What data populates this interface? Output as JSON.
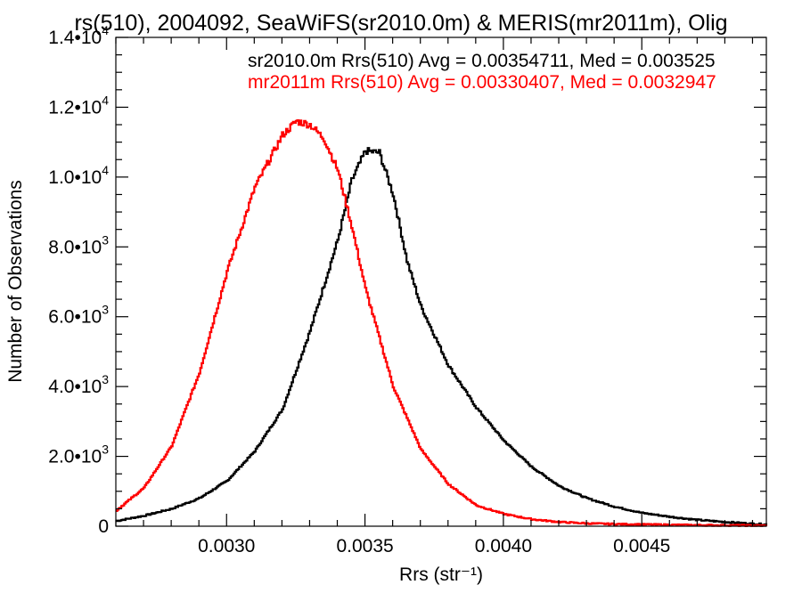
{
  "chart_data": {
    "type": "line",
    "title": "rs(510), 2004092, SeaWiFS(sr2010.0m) & MERIS(mr2011m), Olig",
    "xlabel": "Rrs (str⁻¹)",
    "ylabel": "Number of Observations",
    "xlim": [
      0.0026,
      0.00495
    ],
    "ylim": [
      0,
      14000
    ],
    "x_ticks": [
      {
        "value": 0.003,
        "label": "0.0030"
      },
      {
        "value": 0.0035,
        "label": "0.0035"
      },
      {
        "value": 0.004,
        "label": "0.0040"
      },
      {
        "value": 0.0045,
        "label": "0.0045"
      }
    ],
    "y_ticks": [
      {
        "value": 0,
        "mant": "0",
        "exp": ""
      },
      {
        "value": 2000,
        "mant": "2.0•10",
        "exp": "3"
      },
      {
        "value": 4000,
        "mant": "4.0•10",
        "exp": "3"
      },
      {
        "value": 6000,
        "mant": "6.0•10",
        "exp": "3"
      },
      {
        "value": 8000,
        "mant": "8.0•10",
        "exp": "3"
      },
      {
        "value": 10000,
        "mant": "1.0•10",
        "exp": "4"
      },
      {
        "value": 12000,
        "mant": "1.2•10",
        "exp": "4"
      },
      {
        "value": 14000,
        "mant": "1.4•10",
        "exp": "4"
      }
    ],
    "grid": false,
    "legend_position": "top-right",
    "series": [
      {
        "name": "sr2010.0m",
        "label": "sr2010.0m Rrs(510) Avg = 0.00354711, Med = 0.003525",
        "color": "#000000",
        "x": [
          0.0026,
          0.0027,
          0.0028,
          0.0029,
          0.003,
          0.0031,
          0.0032,
          0.0033,
          0.0034,
          0.00345,
          0.0035,
          0.00355,
          0.0036,
          0.00365,
          0.0037,
          0.0038,
          0.0039,
          0.004,
          0.0041,
          0.0042,
          0.0043,
          0.0044,
          0.0045,
          0.0046,
          0.0047,
          0.0048,
          0.0049,
          0.00495
        ],
        "y": [
          150,
          300,
          500,
          800,
          1300,
          2150,
          3350,
          5600,
          8200,
          9900,
          10750,
          10700,
          9500,
          7600,
          6300,
          4600,
          3400,
          2450,
          1700,
          1150,
          800,
          560,
          380,
          270,
          180,
          120,
          70,
          50
        ]
      },
      {
        "name": "mr2011m",
        "label": "mr2011m Rrs(510) Avg = 0.00330407, Med = 0.0032947",
        "color": "#ff0000",
        "x": [
          0.0026,
          0.0027,
          0.0028,
          0.0029,
          0.003,
          0.0031,
          0.0032,
          0.00325,
          0.0033,
          0.00335,
          0.0034,
          0.00345,
          0.0035,
          0.0036,
          0.0037,
          0.0038,
          0.0039,
          0.004,
          0.0041,
          0.0042,
          0.0043,
          0.0044,
          0.0045,
          0.0046,
          0.0047,
          0.0048,
          0.0049,
          0.00495
        ],
        "y": [
          450,
          1100,
          2300,
          4400,
          7300,
          9700,
          11200,
          11600,
          11500,
          11100,
          10200,
          8600,
          6800,
          4000,
          2200,
          1200,
          600,
          350,
          200,
          120,
          80,
          60,
          50,
          40,
          30,
          25,
          20,
          15
        ]
      }
    ]
  }
}
